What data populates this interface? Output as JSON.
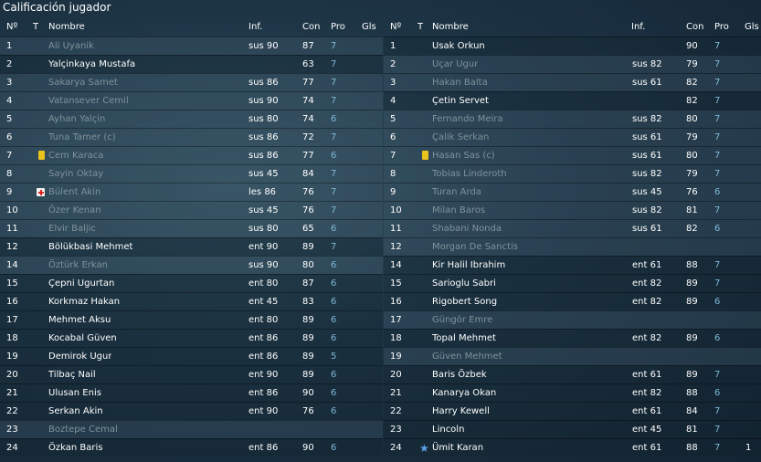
{
  "title": "Calificación jugador",
  "headers": {
    "num": "Nº",
    "t": "T",
    "name": "Nombre",
    "inf": "Inf.",
    "con": "Con",
    "pro": "Pro",
    "gls": "Gls"
  },
  "left": [
    {
      "num": "1",
      "name": "Ali Uyanik",
      "inf": "sus 90",
      "con": "87",
      "pro": "7",
      "gls": "",
      "dim": true
    },
    {
      "num": "2",
      "name": "Yalçinkaya Mustafa",
      "inf": "",
      "con": "63",
      "pro": "7",
      "gls": "",
      "dim": false
    },
    {
      "num": "3",
      "name": "Sakarya Samet",
      "inf": "sus 86",
      "con": "77",
      "pro": "7",
      "gls": "",
      "dim": true
    },
    {
      "num": "4",
      "name": "Vatansever Cemil",
      "inf": "sus 90",
      "con": "74",
      "pro": "7",
      "gls": "",
      "dim": true
    },
    {
      "num": "5",
      "name": "Ayhan Yalçin",
      "inf": "sus 80",
      "con": "74",
      "pro": "6",
      "gls": "",
      "dim": true
    },
    {
      "num": "6",
      "name": "Tuna Tamer (c)",
      "inf": "sus 86",
      "con": "72",
      "pro": "7",
      "gls": "",
      "dim": true
    },
    {
      "num": "7",
      "name": "Cem Karaca",
      "inf": "sus 86",
      "con": "77",
      "pro": "6",
      "gls": "",
      "dim": true,
      "icon": "card"
    },
    {
      "num": "8",
      "name": "Sayin Oktay",
      "inf": "sus 45",
      "con": "84",
      "pro": "7",
      "gls": "",
      "dim": true
    },
    {
      "num": "9",
      "name": "Bülent Akin",
      "inf": "les 86",
      "con": "76",
      "pro": "7",
      "gls": "",
      "dim": true,
      "icon": "injury"
    },
    {
      "num": "10",
      "name": "Özer Kenan",
      "inf": "sus 45",
      "con": "76",
      "pro": "7",
      "gls": "",
      "dim": true
    },
    {
      "num": "11",
      "name": "Elvir Baljic",
      "inf": "sus 80",
      "con": "65",
      "pro": "6",
      "gls": "",
      "dim": true
    },
    {
      "num": "12",
      "name": "Bölükbasi Mehmet",
      "inf": "ent 90",
      "con": "89",
      "pro": "7",
      "gls": "",
      "dim": false
    },
    {
      "num": "14",
      "name": "Öztürk Erkan",
      "inf": "sus 90",
      "con": "80",
      "pro": "6",
      "gls": "",
      "dim": true
    },
    {
      "num": "15",
      "name": "Çepni Ugurtan",
      "inf": "ent 80",
      "con": "87",
      "pro": "6",
      "gls": "",
      "dim": false
    },
    {
      "num": "16",
      "name": "Korkmaz Hakan",
      "inf": "ent 45",
      "con": "83",
      "pro": "6",
      "gls": "",
      "dim": false
    },
    {
      "num": "17",
      "name": "Mehmet Aksu",
      "inf": "ent 80",
      "con": "89",
      "pro": "6",
      "gls": "",
      "dim": false
    },
    {
      "num": "18",
      "name": "Kocabal Güven",
      "inf": "ent 86",
      "con": "89",
      "pro": "6",
      "gls": "",
      "dim": false
    },
    {
      "num": "19",
      "name": "Demirok Ugur",
      "inf": "ent 86",
      "con": "89",
      "pro": "5",
      "gls": "",
      "dim": false
    },
    {
      "num": "20",
      "name": "Tilbaç Nail",
      "inf": "ent 90",
      "con": "89",
      "pro": "6",
      "gls": "",
      "dim": false
    },
    {
      "num": "21",
      "name": "Ulusan Enis",
      "inf": "ent 86",
      "con": "90",
      "pro": "6",
      "gls": "",
      "dim": false
    },
    {
      "num": "22",
      "name": "Serkan Akin",
      "inf": "ent 90",
      "con": "76",
      "pro": "6",
      "gls": "",
      "dim": false
    },
    {
      "num": "23",
      "name": "Boztepe Cemal",
      "inf": "",
      "con": "",
      "pro": "",
      "gls": "",
      "dim": true
    },
    {
      "num": "24",
      "name": "Özkan Baris",
      "inf": "ent 86",
      "con": "90",
      "pro": "6",
      "gls": "",
      "dim": false
    }
  ],
  "right": [
    {
      "num": "1",
      "name": "Usak Orkun",
      "inf": "",
      "con": "90",
      "pro": "7",
      "gls": "",
      "dim": false
    },
    {
      "num": "2",
      "name": "Uçar Ugur",
      "inf": "sus 82",
      "con": "79",
      "pro": "7",
      "gls": "",
      "dim": true
    },
    {
      "num": "3",
      "name": "Hakan Balta",
      "inf": "sus 61",
      "con": "82",
      "pro": "7",
      "gls": "",
      "dim": true
    },
    {
      "num": "4",
      "name": "Çetin Servet",
      "inf": "",
      "con": "82",
      "pro": "7",
      "gls": "",
      "dim": false
    },
    {
      "num": "5",
      "name": "Fernando Meira",
      "inf": "sus 82",
      "con": "80",
      "pro": "7",
      "gls": "",
      "dim": true
    },
    {
      "num": "6",
      "name": "Çalik Serkan",
      "inf": "sus 61",
      "con": "79",
      "pro": "7",
      "gls": "",
      "dim": true
    },
    {
      "num": "7",
      "name": "Hasan Sas (c)",
      "inf": "sus 61",
      "con": "80",
      "pro": "7",
      "gls": "",
      "dim": true,
      "icon": "card"
    },
    {
      "num": "8",
      "name": "Tobias Linderoth",
      "inf": "sus 82",
      "con": "79",
      "pro": "7",
      "gls": "",
      "dim": true
    },
    {
      "num": "9",
      "name": "Turan Arda",
      "inf": "sus 45",
      "con": "76",
      "pro": "6",
      "gls": "",
      "dim": true
    },
    {
      "num": "10",
      "name": "Milan Baros",
      "inf": "sus 82",
      "con": "81",
      "pro": "7",
      "gls": "",
      "dim": true
    },
    {
      "num": "11",
      "name": "Shabani Nonda",
      "inf": "sus 61",
      "con": "82",
      "pro": "6",
      "gls": "",
      "dim": true
    },
    {
      "num": "12",
      "name": "Morgan De Sanctis",
      "inf": "",
      "con": "",
      "pro": "",
      "gls": "",
      "dim": true
    },
    {
      "num": "14",
      "name": "Kir Halil Ibrahim",
      "inf": "ent 61",
      "con": "88",
      "pro": "7",
      "gls": "",
      "dim": false
    },
    {
      "num": "15",
      "name": "Sarioglu Sabri",
      "inf": "ent 82",
      "con": "89",
      "pro": "7",
      "gls": "",
      "dim": false
    },
    {
      "num": "16",
      "name": "Rigobert Song",
      "inf": "ent 82",
      "con": "89",
      "pro": "6",
      "gls": "",
      "dim": false
    },
    {
      "num": "17",
      "name": "Güngör Emre",
      "inf": "",
      "con": "",
      "pro": "",
      "gls": "",
      "dim": true
    },
    {
      "num": "18",
      "name": "Topal Mehmet",
      "inf": "ent 82",
      "con": "89",
      "pro": "6",
      "gls": "",
      "dim": false
    },
    {
      "num": "19",
      "name": "Güven Mehmet",
      "inf": "",
      "con": "",
      "pro": "",
      "gls": "",
      "dim": true
    },
    {
      "num": "20",
      "name": "Baris Özbek",
      "inf": "ent 61",
      "con": "89",
      "pro": "7",
      "gls": "",
      "dim": false
    },
    {
      "num": "21",
      "name": "Kanarya Okan",
      "inf": "ent 82",
      "con": "88",
      "pro": "6",
      "gls": "",
      "dim": false
    },
    {
      "num": "22",
      "name": "Harry Kewell",
      "inf": "ent 61",
      "con": "84",
      "pro": "7",
      "gls": "",
      "dim": false
    },
    {
      "num": "23",
      "name": "Lincoln",
      "inf": "ent 45",
      "con": "81",
      "pro": "7",
      "gls": "",
      "dim": false
    },
    {
      "num": "24",
      "name": "Ümit Karan",
      "inf": "ent 61",
      "con": "88",
      "pro": "7",
      "gls": "1",
      "dim": false,
      "icon": "star"
    }
  ]
}
